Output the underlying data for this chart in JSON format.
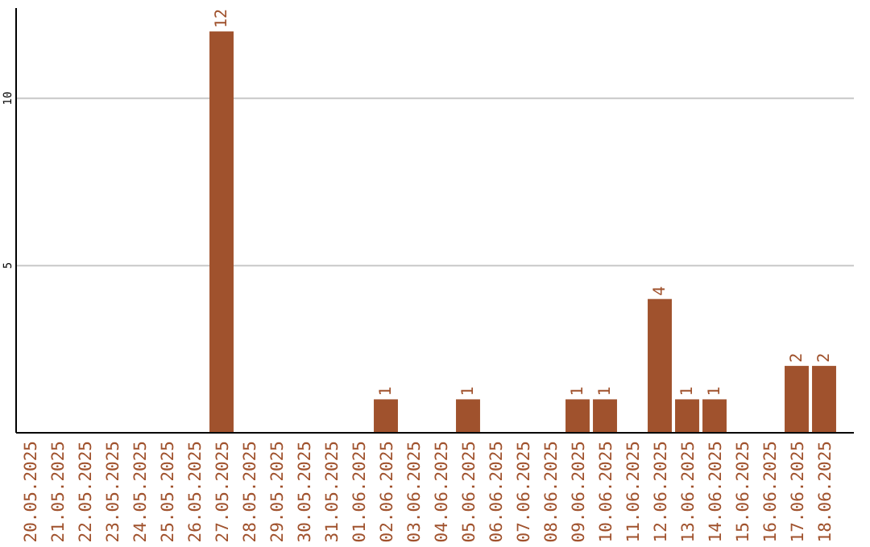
{
  "chart_data": {
    "type": "bar",
    "categories": [
      "20.05.2025",
      "21.05.2025",
      "22.05.2025",
      "23.05.2025",
      "24.05.2025",
      "25.05.2025",
      "26.05.2025",
      "27.05.2025",
      "28.05.2025",
      "29.05.2025",
      "30.05.2025",
      "31.05.2025",
      "01.06.2025",
      "02.06.2025",
      "03.06.2025",
      "04.06.2025",
      "05.06.2025",
      "06.06.2025",
      "07.06.2025",
      "08.06.2025",
      "09.06.2025",
      "10.06.2025",
      "11.06.2025",
      "12.06.2025",
      "13.06.2025",
      "14.06.2025",
      "15.06.2025",
      "16.06.2025",
      "17.06.2025",
      "18.06.2025"
    ],
    "values": [
      0,
      0,
      0,
      0,
      0,
      0,
      0,
      12,
      0,
      0,
      0,
      0,
      0,
      1,
      0,
      0,
      1,
      0,
      0,
      0,
      1,
      1,
      0,
      4,
      1,
      1,
      0,
      0,
      2,
      2
    ],
    "value_labels": [
      null,
      null,
      null,
      null,
      null,
      null,
      null,
      "12",
      null,
      null,
      null,
      null,
      null,
      "1",
      null,
      null,
      "1",
      null,
      null,
      null,
      "1",
      "1",
      null,
      "4",
      "1",
      "1",
      null,
      null,
      "2",
      "2"
    ],
    "color": "#a0522d",
    "ylim": [
      0,
      12.7
    ],
    "yticks": [
      5,
      10
    ],
    "grid": "y"
  }
}
